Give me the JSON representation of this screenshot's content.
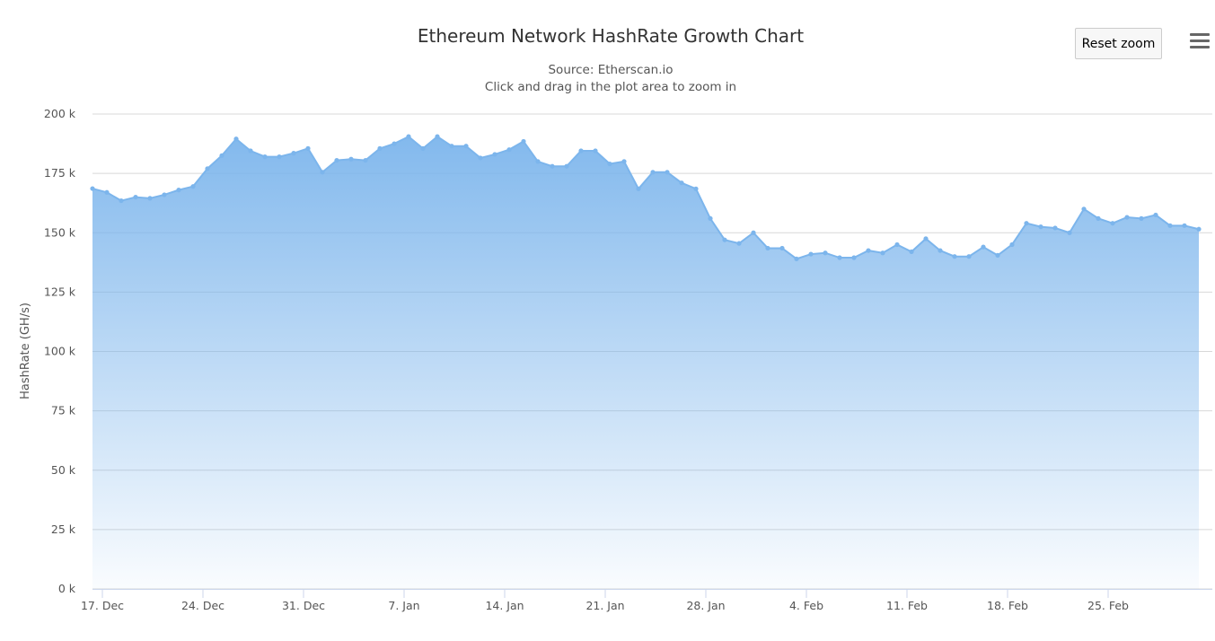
{
  "header": {
    "title": "Ethereum Network HashRate Growth Chart",
    "subtitle": "Source: Etherscan.io",
    "hint": "Click and drag in the plot area to zoom in",
    "reset_zoom": "Reset zoom",
    "menu_icon": "hamburger-menu-icon"
  },
  "chart_data": {
    "type": "area",
    "title": "Ethereum Network HashRate Growth Chart",
    "ylabel": "HashRate (GH/s)",
    "ylim": [
      0,
      200000
    ],
    "yticks": [
      {
        "v": 0,
        "label": "0 k"
      },
      {
        "v": 25000,
        "label": "25 k"
      },
      {
        "v": 50000,
        "label": "50 k"
      },
      {
        "v": 75000,
        "label": "75 k"
      },
      {
        "v": 100000,
        "label": "100 k"
      },
      {
        "v": 125000,
        "label": "125 k"
      },
      {
        "v": 150000,
        "label": "150 k"
      },
      {
        "v": 175000,
        "label": "175 k"
      },
      {
        "v": 200000,
        "label": "200 k"
      }
    ],
    "xticks": [
      {
        "date": "2017-12-17",
        "label": "17. Dec"
      },
      {
        "date": "2017-12-24",
        "label": "24. Dec"
      },
      {
        "date": "2017-12-31",
        "label": "31. Dec"
      },
      {
        "date": "2018-01-07",
        "label": "7. Jan"
      },
      {
        "date": "2018-01-14",
        "label": "14. Jan"
      },
      {
        "date": "2018-01-21",
        "label": "21. Jan"
      },
      {
        "date": "2018-01-28",
        "label": "28. Jan"
      },
      {
        "date": "2018-02-04",
        "label": "4. Feb"
      },
      {
        "date": "2018-02-11",
        "label": "11. Feb"
      },
      {
        "date": "2018-02-18",
        "label": "18. Feb"
      },
      {
        "date": "2018-02-25",
        "label": "25. Feb"
      }
    ],
    "start_date": "2017-12-16",
    "grid": true,
    "color": "#7cb5ec",
    "values": [
      168600,
      167000,
      163500,
      165000,
      164500,
      166000,
      168000,
      169500,
      177000,
      182500,
      189500,
      184500,
      182000,
      182000,
      183500,
      185500,
      175500,
      180500,
      181000,
      180500,
      185500,
      187500,
      190500,
      185500,
      190500,
      186500,
      186500,
      181500,
      183000,
      185000,
      188500,
      180000,
      178000,
      178000,
      184500,
      184500,
      179000,
      180000,
      168500,
      175500,
      175500,
      171000,
      168500,
      156000,
      147000,
      145500,
      150000,
      143500,
      143500,
      139000,
      141000,
      141500,
      139500,
      139500,
      142500,
      141500,
      145000,
      142000,
      147500,
      142500,
      140000,
      140000,
      144000,
      140500,
      145000,
      154000,
      152500,
      152000,
      150000,
      160000,
      156000,
      154000,
      156500,
      156000,
      157500,
      153000,
      153000,
      151500
    ]
  }
}
